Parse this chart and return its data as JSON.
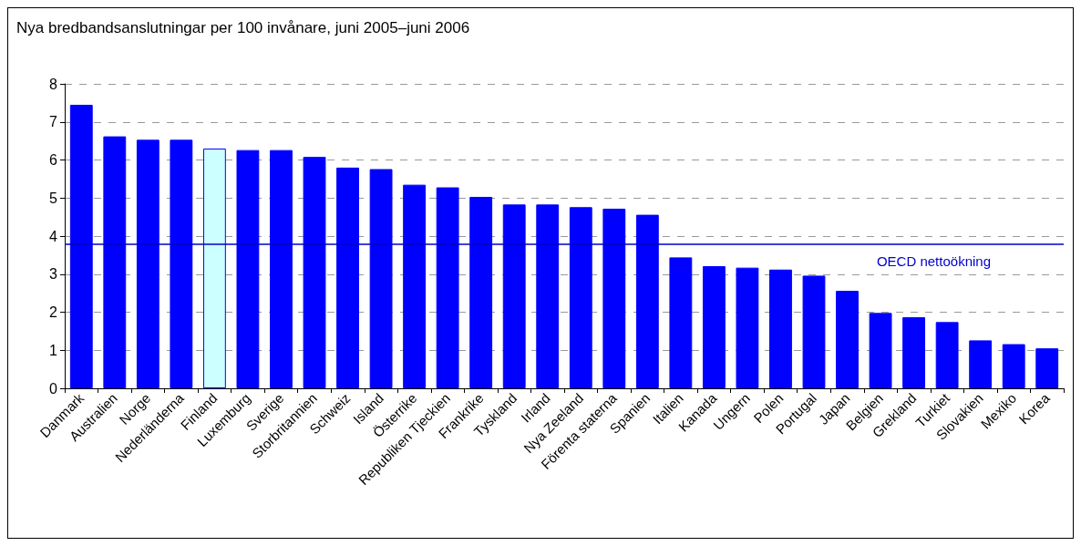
{
  "chart_data": {
    "type": "bar",
    "title": "Nya bredbandsanslutningar per 100 invånare, juni 2005–juni 2006",
    "categories": [
      "Danmark",
      "Australien",
      "Norge",
      "Nederländerna",
      "Finland",
      "Luxemburg",
      "Sverige",
      "Storbritannien",
      "Schweiz",
      "Island",
      "Österrike",
      "Republiken Tjeckien",
      "Frankrike",
      "Tyskland",
      "Irland",
      "Nya Zeeland",
      "Förenta staterna",
      "Spanien",
      "Italien",
      "Kanada",
      "Ungern",
      "Polen",
      "Portugal",
      "Japan",
      "Belgien",
      "Grekland",
      "Turkiet",
      "Slovakien",
      "Mexiko",
      "Korea"
    ],
    "values": [
      7.45,
      6.62,
      6.53,
      6.53,
      6.3,
      6.26,
      6.26,
      6.08,
      5.8,
      5.76,
      5.35,
      5.28,
      5.03,
      4.83,
      4.83,
      4.76,
      4.72,
      4.56,
      3.44,
      3.21,
      3.17,
      3.12,
      2.96,
      2.56,
      1.98,
      1.87,
      1.74,
      1.26,
      1.16,
      1.05
    ],
    "colors": [
      "#0000ff",
      "#0000ff",
      "#0000ff",
      "#0000ff",
      "#ccffff",
      "#0000ff",
      "#0000ff",
      "#0000ff",
      "#0000ff",
      "#0000ff",
      "#0000ff",
      "#0000ff",
      "#0000ff",
      "#0000ff",
      "#0000ff",
      "#0000ff",
      "#0000ff",
      "#0000ff",
      "#0000ff",
      "#0000ff",
      "#0000ff",
      "#0000ff",
      "#0000ff",
      "#0000ff",
      "#0000ff",
      "#0000ff",
      "#0000ff",
      "#0000ff",
      "#0000ff",
      "#0000ff"
    ],
    "ylim": [
      0,
      8
    ],
    "yticks": [
      0,
      1,
      2,
      3,
      4,
      5,
      6,
      7,
      8
    ],
    "grid": "y",
    "ref_lines": [
      {
        "axis": "y",
        "value": 3.8,
        "label": "OECD nettoökning",
        "color": "#0000cc"
      }
    ]
  }
}
